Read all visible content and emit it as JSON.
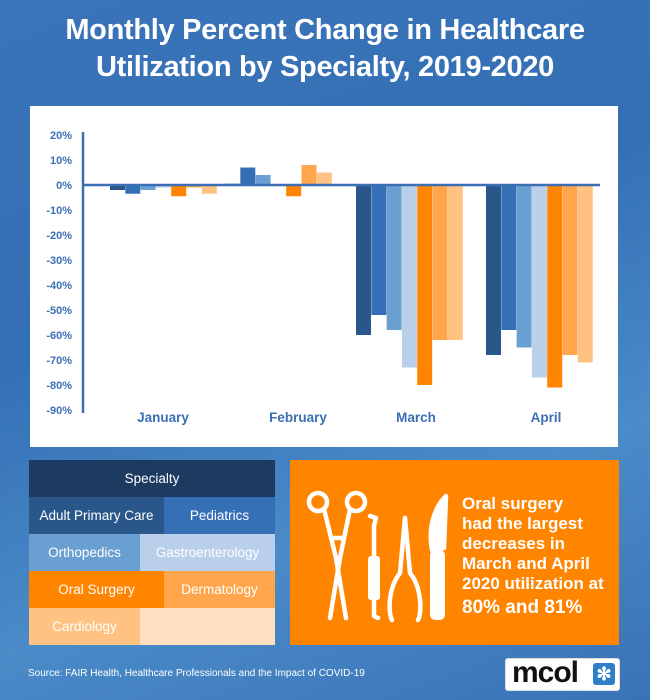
{
  "title": {
    "line1": "Monthly Percent Change in Healthcare",
    "line2": "Utilization by Specialty, 2019-2020"
  },
  "chart_data": {
    "type": "bar",
    "title": "Monthly Percent Change in Healthcare Utilization by Specialty, 2019-2020",
    "xlabel": "",
    "ylabel": "",
    "ylim": [
      -90,
      20
    ],
    "yticks": [
      20,
      10,
      0,
      -10,
      -20,
      -30,
      -40,
      -50,
      -60,
      -70,
      -80,
      -90
    ],
    "ytick_labels": [
      "20%",
      "10%",
      "0%",
      "-10%",
      "-20%",
      "-30%",
      "-40%",
      "-50%",
      "-60%",
      "-70%",
      "-80%",
      "-90%"
    ],
    "grid": false,
    "categories": [
      "January",
      "February",
      "March",
      "April"
    ],
    "series": [
      {
        "name": "Adult Primary Care",
        "color": "#29578a",
        "values": [
          -2,
          0.5,
          -60,
          -68
        ]
      },
      {
        "name": "Pediatrics",
        "color": "#3570b6",
        "values": [
          -3.5,
          7,
          -52,
          -58
        ]
      },
      {
        "name": "Orthopedics",
        "color": "#6a9fd1",
        "values": [
          -2,
          4,
          -58,
          -65
        ]
      },
      {
        "name": "Gastroenterology",
        "color": "#b9cfea",
        "values": [
          -1,
          0,
          -73,
          -77
        ]
      },
      {
        "name": "Oral Surgery",
        "color": "#ff8400",
        "values": [
          -4.5,
          -4.5,
          -80,
          -81
        ]
      },
      {
        "name": "Dermatology",
        "color": "#ffa64d",
        "values": [
          -1,
          8,
          -62,
          -68
        ]
      },
      {
        "name": "Cardiology",
        "color": "#ffc283",
        "values": [
          -3.5,
          5,
          -62,
          -71
        ]
      }
    ],
    "legend": "bottom-left",
    "axis_color": "#3a6fb4"
  },
  "legend": {
    "header": "Specialty",
    "header_color": "#1d3a61",
    "items": [
      {
        "label": "Adult Primary Care",
        "color": "#29578a"
      },
      {
        "label": "Pediatrics",
        "color": "#3570b6"
      },
      {
        "label": "Orthopedics",
        "color": "#6a9fd1"
      },
      {
        "label": "Gastroenterology",
        "color": "#b9cfea"
      },
      {
        "label": "Oral Surgery",
        "color": "#ff8400"
      },
      {
        "label": "Dermatology",
        "color": "#ffa64d"
      },
      {
        "label": "Cardiology",
        "color": "#ffc283"
      }
    ],
    "empty_color": "#fde0c0"
  },
  "callout": {
    "icon": "surgical-instruments-icon",
    "lines": [
      "Oral surgery",
      "had the largest",
      "decreases in",
      "March and April",
      "2020 utilization at"
    ],
    "highlight": "80% and 81%"
  },
  "footer": {
    "source": "Source: FAIR Health, Healthcare Professionals and the Impact of COVID-19",
    "logo_text": "mcol",
    "logo_icon": "asterisk-icon"
  }
}
